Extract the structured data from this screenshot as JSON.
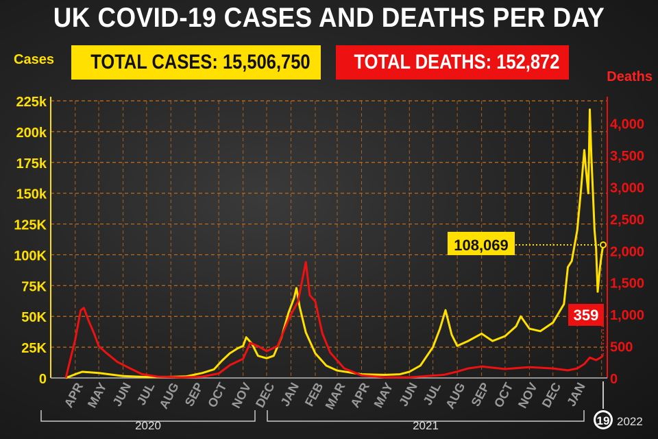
{
  "header": {
    "title": "UK COVID-19 CASES AND DEATHS PER DAY",
    "total_cases": "TOTAL CASES: 15,506,750",
    "total_deaths": "TOTAL DEATHS: 152,872"
  },
  "colors": {
    "cases": "#ffe000",
    "deaths": "#ee1111",
    "grid": "#c96f1c",
    "background": "#1b1b1b"
  },
  "chart_data": {
    "type": "line",
    "title": "UK COVID-19 CASES AND DEATHS PER DAY",
    "ylabel": "Cases",
    "y2label": "Deaths",
    "ylim": [
      0,
      225000
    ],
    "y2lim": [
      0,
      4350
    ],
    "grid": true,
    "yticks": [
      "0",
      "25K",
      "50K",
      "75K",
      "100K",
      "125K",
      "150k",
      "175k",
      "200k",
      "225k"
    ],
    "yticks_values": [
      0,
      25000,
      50000,
      75000,
      100000,
      125000,
      150000,
      175000,
      200000,
      225000
    ],
    "y2ticks": [
      "0",
      "500",
      "1,000",
      "1,500",
      "2,000",
      "2,500",
      "3,000",
      "3,500",
      "4,000"
    ],
    "y2ticks_values": [
      0,
      500,
      1000,
      1500,
      2000,
      2500,
      3000,
      3500,
      4000
    ],
    "month_labels": [
      "APR",
      "MAY",
      "JUN",
      "JUL",
      "AUG",
      "SEP",
      "OCT",
      "NOV",
      "DEC",
      "JAN",
      "FEB",
      "MAR",
      "APR",
      "MAY",
      "JUN",
      "JUL",
      "AUG",
      "SEP",
      "OCT",
      "NOV",
      "DEC",
      "JAN"
    ],
    "year_labels": [
      "2020",
      "2021",
      "2022"
    ],
    "end_day_label": "19",
    "series": [
      {
        "name": "Cases",
        "axis": "left",
        "values": [
          {
            "x": "2020-03-20",
            "y": 0
          },
          {
            "x": "2020-04-01",
            "y": 3000
          },
          {
            "x": "2020-04-10",
            "y": 5000
          },
          {
            "x": "2020-05-01",
            "y": 4000
          },
          {
            "x": "2020-06-01",
            "y": 1500
          },
          {
            "x": "2020-07-01",
            "y": 800
          },
          {
            "x": "2020-08-01",
            "y": 900
          },
          {
            "x": "2020-08-20",
            "y": 1200
          },
          {
            "x": "2020-09-10",
            "y": 4000
          },
          {
            "x": "2020-09-25",
            "y": 7000
          },
          {
            "x": "2020-10-05",
            "y": 14000
          },
          {
            "x": "2020-10-15",
            "y": 20000
          },
          {
            "x": "2020-10-25",
            "y": 24000
          },
          {
            "x": "2020-11-01",
            "y": 26000
          },
          {
            "x": "2020-11-05",
            "y": 33000
          },
          {
            "x": "2020-11-12",
            "y": 28000
          },
          {
            "x": "2020-11-20",
            "y": 18000
          },
          {
            "x": "2020-12-01",
            "y": 16000
          },
          {
            "x": "2020-12-10",
            "y": 18000
          },
          {
            "x": "2020-12-20",
            "y": 33000
          },
          {
            "x": "2020-12-29",
            "y": 53000
          },
          {
            "x": "2021-01-05",
            "y": 65000
          },
          {
            "x": "2021-01-08",
            "y": 73000
          },
          {
            "x": "2021-01-12",
            "y": 58000
          },
          {
            "x": "2021-01-20",
            "y": 37000
          },
          {
            "x": "2021-02-01",
            "y": 20000
          },
          {
            "x": "2021-02-15",
            "y": 10000
          },
          {
            "x": "2021-03-01",
            "y": 6000
          },
          {
            "x": "2021-04-01",
            "y": 3000
          },
          {
            "x": "2021-05-01",
            "y": 2500
          },
          {
            "x": "2021-05-20",
            "y": 3000
          },
          {
            "x": "2021-06-01",
            "y": 5000
          },
          {
            "x": "2021-06-15",
            "y": 10000
          },
          {
            "x": "2021-07-01",
            "y": 25000
          },
          {
            "x": "2021-07-10",
            "y": 40000
          },
          {
            "x": "2021-07-17",
            "y": 55000
          },
          {
            "x": "2021-07-25",
            "y": 35000
          },
          {
            "x": "2021-08-01",
            "y": 26000
          },
          {
            "x": "2021-08-15",
            "y": 30000
          },
          {
            "x": "2021-09-01",
            "y": 36000
          },
          {
            "x": "2021-09-15",
            "y": 30000
          },
          {
            "x": "2021-10-01",
            "y": 34000
          },
          {
            "x": "2021-10-15",
            "y": 42000
          },
          {
            "x": "2021-10-21",
            "y": 50000
          },
          {
            "x": "2021-11-01",
            "y": 40000
          },
          {
            "x": "2021-11-15",
            "y": 38000
          },
          {
            "x": "2021-12-01",
            "y": 45000
          },
          {
            "x": "2021-12-15",
            "y": 60000
          },
          {
            "x": "2021-12-20",
            "y": 90000
          },
          {
            "x": "2021-12-25",
            "y": 95000
          },
          {
            "x": "2022-01-01",
            "y": 120000
          },
          {
            "x": "2022-01-06",
            "y": 155000
          },
          {
            "x": "2022-01-10",
            "y": 185000
          },
          {
            "x": "2022-01-12",
            "y": 170000
          },
          {
            "x": "2022-01-15",
            "y": 150000
          },
          {
            "x": "2022-01-17",
            "y": 218000
          },
          {
            "x": "2022-01-19",
            "y": 180000
          },
          {
            "x": "2022-01-21",
            "y": 150000
          },
          {
            "x": "2022-01-23",
            "y": 120000
          },
          {
            "x": "2022-01-25",
            "y": 105000
          },
          {
            "x": "2022-01-27",
            "y": 70000
          },
          {
            "x": "2022-01-30",
            "y": 90000
          },
          {
            "x": "2022-02-01",
            "y": 100000
          },
          {
            "x": "2022-02-03",
            "y": 108069
          }
        ]
      },
      {
        "name": "Deaths",
        "axis": "right",
        "values": [
          {
            "x": "2020-03-20",
            "y": 0
          },
          {
            "x": "2020-04-01",
            "y": 600
          },
          {
            "x": "2020-04-08",
            "y": 1060
          },
          {
            "x": "2020-04-12",
            "y": 1100
          },
          {
            "x": "2020-04-18",
            "y": 900
          },
          {
            "x": "2020-04-25",
            "y": 700
          },
          {
            "x": "2020-05-01",
            "y": 500
          },
          {
            "x": "2020-05-10",
            "y": 400
          },
          {
            "x": "2020-05-25",
            "y": 250
          },
          {
            "x": "2020-06-10",
            "y": 150
          },
          {
            "x": "2020-06-25",
            "y": 60
          },
          {
            "x": "2020-07-15",
            "y": 20
          },
          {
            "x": "2020-08-15",
            "y": 10
          },
          {
            "x": "2020-09-10",
            "y": 20
          },
          {
            "x": "2020-10-01",
            "y": 70
          },
          {
            "x": "2020-10-15",
            "y": 200
          },
          {
            "x": "2020-11-01",
            "y": 300
          },
          {
            "x": "2020-11-10",
            "y": 550
          },
          {
            "x": "2020-11-20",
            "y": 500
          },
          {
            "x": "2020-12-01",
            "y": 420
          },
          {
            "x": "2020-12-15",
            "y": 500
          },
          {
            "x": "2020-12-30",
            "y": 950
          },
          {
            "x": "2021-01-10",
            "y": 1200
          },
          {
            "x": "2021-01-20",
            "y": 1820
          },
          {
            "x": "2021-01-25",
            "y": 1300
          },
          {
            "x": "2021-02-01",
            "y": 1200
          },
          {
            "x": "2021-02-10",
            "y": 700
          },
          {
            "x": "2021-02-20",
            "y": 400
          },
          {
            "x": "2021-03-10",
            "y": 150
          },
          {
            "x": "2021-04-01",
            "y": 40
          },
          {
            "x": "2021-05-01",
            "y": 10
          },
          {
            "x": "2021-06-01",
            "y": 10
          },
          {
            "x": "2021-07-15",
            "y": 50
          },
          {
            "x": "2021-08-01",
            "y": 100
          },
          {
            "x": "2021-08-15",
            "y": 150
          },
          {
            "x": "2021-09-01",
            "y": 180
          },
          {
            "x": "2021-10-01",
            "y": 140
          },
          {
            "x": "2021-11-01",
            "y": 170
          },
          {
            "x": "2021-12-01",
            "y": 150
          },
          {
            "x": "2021-12-20",
            "y": 120
          },
          {
            "x": "2022-01-01",
            "y": 150
          },
          {
            "x": "2022-01-10",
            "y": 220
          },
          {
            "x": "2022-01-17",
            "y": 320
          },
          {
            "x": "2022-01-25",
            "y": 280
          },
          {
            "x": "2022-02-01",
            "y": 330
          },
          {
            "x": "2022-02-03",
            "y": 359
          }
        ]
      }
    ],
    "annotations": [
      {
        "text": "108,069",
        "series": "Cases",
        "x": "2022-02-03",
        "y": 108069
      },
      {
        "text": "359",
        "series": "Deaths",
        "x": "2022-02-03",
        "y": 359
      }
    ]
  }
}
